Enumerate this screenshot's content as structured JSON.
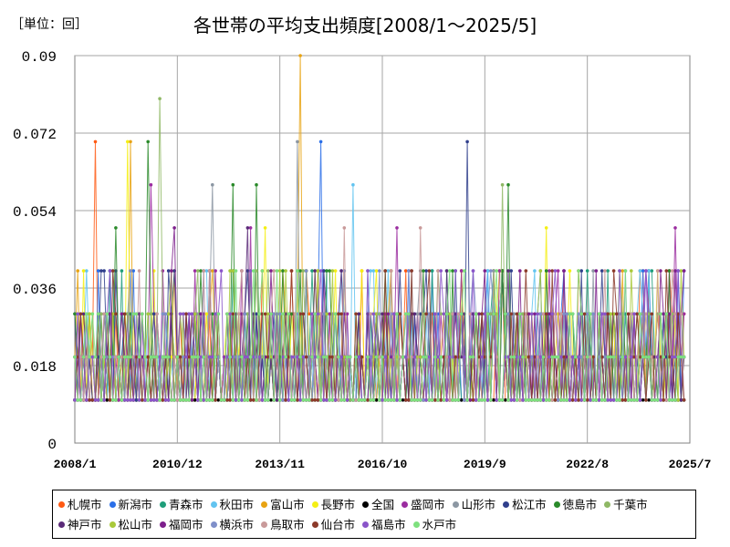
{
  "unit_label": "［単位：回］",
  "chart_data": {
    "type": "line",
    "title": "各世帯の平均支出頻度[2008/1～2025/5]",
    "xlabel": "",
    "ylabel": "",
    "ylim": [
      0,
      0.09
    ],
    "yticks": [
      "0",
      "0.018",
      "0.036",
      "0.054",
      "0.072",
      "0.09"
    ],
    "xticks": [
      "2008/1",
      "2010/12",
      "2013/11",
      "2016/10",
      "2019/9",
      "2022/8",
      "2025/7"
    ],
    "grid": true,
    "legend_position": "bottom",
    "series": [
      {
        "name": "札幌市",
        "color": "#ff5a14",
        "peaks": [
          [
            2008.6,
            0.07
          ],
          [
            2011.0,
            0.03
          ],
          [
            2014.1,
            0.02
          ],
          [
            2019.5,
            0.01
          ],
          [
            2021.9,
            0.04
          ],
          [
            2025.0,
            0.03
          ]
        ]
      },
      {
        "name": "新潟市",
        "color": "#2b6fe8",
        "peaks": [
          [
            2008.7,
            0.04
          ],
          [
            2011.2,
            0.02
          ],
          [
            2015.0,
            0.07
          ],
          [
            2018.2,
            0.04
          ],
          [
            2020.8,
            0.02
          ],
          [
            2025.3,
            0.04
          ]
        ]
      },
      {
        "name": "青森市",
        "color": "#1f9e7a",
        "peaks": [
          [
            2009.0,
            0.04
          ],
          [
            2012.0,
            0.03
          ],
          [
            2014.8,
            0.02
          ],
          [
            2017.6,
            0.03
          ],
          [
            2022.6,
            0.04
          ],
          [
            2024.8,
            0.03
          ]
        ]
      },
      {
        "name": "秋田市",
        "color": "#62c4f0",
        "peaks": [
          [
            2009.4,
            0.03
          ],
          [
            2012.3,
            0.02
          ],
          [
            2015.9,
            0.06
          ],
          [
            2018.4,
            0.02
          ],
          [
            2021.0,
            0.03
          ],
          [
            2024.5,
            0.02
          ]
        ]
      },
      {
        "name": "富山市",
        "color": "#e8a312",
        "peaks": [
          [
            2009.6,
            0.07
          ],
          [
            2011.6,
            0.02
          ],
          [
            2014.4,
            0.09
          ],
          [
            2017.0,
            0.04
          ],
          [
            2020.6,
            0.03
          ],
          [
            2023.6,
            0.04
          ]
        ]
      },
      {
        "name": "長野市",
        "color": "#f4ef14",
        "peaks": [
          [
            2009.5,
            0.07
          ],
          [
            2012.6,
            0.03
          ],
          [
            2013.4,
            0.05
          ],
          [
            2016.2,
            0.04
          ],
          [
            2021.4,
            0.05
          ],
          [
            2024.2,
            0.02
          ]
        ]
      },
      {
        "name": "全国",
        "color": "#000000",
        "peaks": [
          [
            2008.0,
            0.01
          ],
          [
            2012.0,
            0.01
          ],
          [
            2016.0,
            0.01
          ],
          [
            2020.0,
            0.01
          ],
          [
            2025.3,
            0.01
          ]
        ]
      },
      {
        "name": "盛岡市",
        "color": "#9b2da0",
        "peaks": [
          [
            2010.2,
            0.06
          ],
          [
            2013.0,
            0.05
          ],
          [
            2017.2,
            0.05
          ],
          [
            2019.8,
            0.03
          ],
          [
            2023.4,
            0.03
          ],
          [
            2025.1,
            0.05
          ]
        ]
      },
      {
        "name": "山形市",
        "color": "#8c97a3",
        "peaks": [
          [
            2010.6,
            0.03
          ],
          [
            2011.9,
            0.06
          ],
          [
            2014.3,
            0.07
          ],
          [
            2019.9,
            0.04
          ],
          [
            2022.1,
            0.03
          ],
          [
            2024.0,
            0.02
          ]
        ]
      },
      {
        "name": "松江市",
        "color": "#303f8c",
        "peaks": [
          [
            2010.4,
            0.02
          ],
          [
            2012.8,
            0.03
          ],
          [
            2015.2,
            0.03
          ],
          [
            2019.2,
            0.07
          ],
          [
            2021.8,
            0.03
          ],
          [
            2024.6,
            0.02
          ]
        ]
      },
      {
        "name": "徳島市",
        "color": "#2a8a2a",
        "peaks": [
          [
            2009.2,
            0.05
          ],
          [
            2010.1,
            0.07
          ],
          [
            2012.5,
            0.06
          ],
          [
            2013.2,
            0.06
          ],
          [
            2020.3,
            0.06
          ],
          [
            2024.9,
            0.04
          ]
        ]
      },
      {
        "name": "千葉市",
        "color": "#8fb865",
        "peaks": [
          [
            2010.4,
            0.08
          ],
          [
            2013.5,
            0.04
          ],
          [
            2017.9,
            0.03
          ],
          [
            2020.2,
            0.06
          ],
          [
            2022.3,
            0.02
          ],
          [
            2024.7,
            0.03
          ]
        ]
      },
      {
        "name": "神戸市",
        "color": "#5a2a78",
        "peaks": [
          [
            2009.8,
            0.03
          ],
          [
            2012.9,
            0.05
          ],
          [
            2015.6,
            0.04
          ],
          [
            2019.0,
            0.02
          ],
          [
            2022.0,
            0.03
          ],
          [
            2024.4,
            0.02
          ]
        ]
      },
      {
        "name": "松山市",
        "color": "#a9c93a",
        "peaks": [
          [
            2008.4,
            0.03
          ],
          [
            2011.4,
            0.03
          ],
          [
            2014.9,
            0.04
          ],
          [
            2017.4,
            0.02
          ],
          [
            2020.0,
            0.03
          ],
          [
            2023.8,
            0.04
          ]
        ]
      },
      {
        "name": "福岡市",
        "color": "#7d1f8c",
        "peaks": [
          [
            2010.8,
            0.05
          ],
          [
            2013.6,
            0.04
          ],
          [
            2016.9,
            0.03
          ],
          [
            2019.6,
            0.03
          ],
          [
            2022.8,
            0.04
          ],
          [
            2023.9,
            0.03
          ]
        ]
      },
      {
        "name": "横浜市",
        "color": "#7f8fc9",
        "peaks": [
          [
            2011.7,
            0.04
          ],
          [
            2013.8,
            0.03
          ],
          [
            2015.4,
            0.03
          ],
          [
            2018.6,
            0.03
          ],
          [
            2021.6,
            0.03
          ],
          [
            2024.1,
            0.02
          ]
        ]
      },
      {
        "name": "鳥取市",
        "color": "#c99a9a",
        "peaks": [
          [
            2008.8,
            0.03
          ],
          [
            2012.1,
            0.03
          ],
          [
            2015.7,
            0.05
          ],
          [
            2017.8,
            0.05
          ],
          [
            2021.2,
            0.02
          ],
          [
            2023.3,
            0.02
          ]
        ]
      },
      {
        "name": "仙台市",
        "color": "#8c3a2a",
        "peaks": [
          [
            2009.1,
            0.04
          ],
          [
            2011.3,
            0.03
          ],
          [
            2015.5,
            0.03
          ],
          [
            2016.8,
            0.04
          ],
          [
            2019.4,
            0.03
          ],
          [
            2023.0,
            0.02
          ]
        ]
      },
      {
        "name": "福島市",
        "color": "#8a55c9",
        "peaks": [
          [
            2009.9,
            0.03
          ],
          [
            2012.2,
            0.04
          ],
          [
            2016.5,
            0.03
          ],
          [
            2018.8,
            0.04
          ],
          [
            2021.5,
            0.02
          ],
          [
            2023.5,
            0.04
          ]
        ]
      },
      {
        "name": "水戸市",
        "color": "#7ee07e",
        "peaks": [
          [
            2010.9,
            0.02
          ],
          [
            2013.9,
            0.03
          ],
          [
            2017.5,
            0.03
          ],
          [
            2020.5,
            0.02
          ],
          [
            2022.9,
            0.03
          ],
          [
            2025.2,
            0.02
          ]
        ]
      }
    ]
  }
}
